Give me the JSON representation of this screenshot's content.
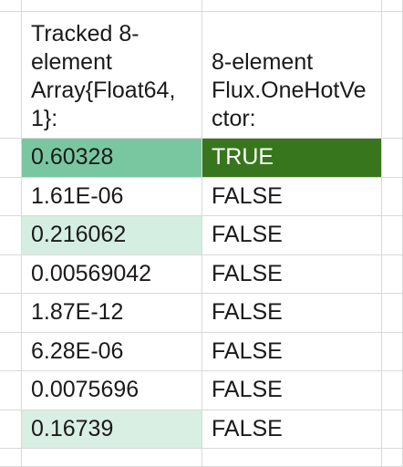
{
  "columns": {
    "array_header": "Tracked 8-element Array{Float64, 1}:",
    "onehot_header": "8-element Flux.OneHotVector:"
  },
  "colors": {
    "gridline": "#d9d9d9",
    "scale_min": "#ffffff",
    "scale_max": "#57bb8a",
    "true_cell": "#38761d",
    "true_text": "#ffffff"
  },
  "rows": [
    {
      "value": "0.60328",
      "onehot": "TRUE",
      "fill": "#79c7a0",
      "onehot_fill": "#38761d"
    },
    {
      "value": "1.61E-06",
      "onehot": "FALSE",
      "fill": "#ffffff",
      "onehot_fill": "#ffffff"
    },
    {
      "value": "0.216062",
      "onehot": "FALSE",
      "fill": "#d5eee2",
      "onehot_fill": "#ffffff"
    },
    {
      "value": "0.00569042",
      "onehot": "FALSE",
      "fill": "#ffffff",
      "onehot_fill": "#ffffff"
    },
    {
      "value": "1.87E-12",
      "onehot": "FALSE",
      "fill": "#ffffff",
      "onehot_fill": "#ffffff"
    },
    {
      "value": "6.28E-06",
      "onehot": "FALSE",
      "fill": "#ffffff",
      "onehot_fill": "#ffffff"
    },
    {
      "value": "0.0075696",
      "onehot": "FALSE",
      "fill": "#ffffff",
      "onehot_fill": "#ffffff"
    },
    {
      "value": "0.16739",
      "onehot": "FALSE",
      "fill": "#d9efe3",
      "onehot_fill": "#ffffff"
    }
  ]
}
